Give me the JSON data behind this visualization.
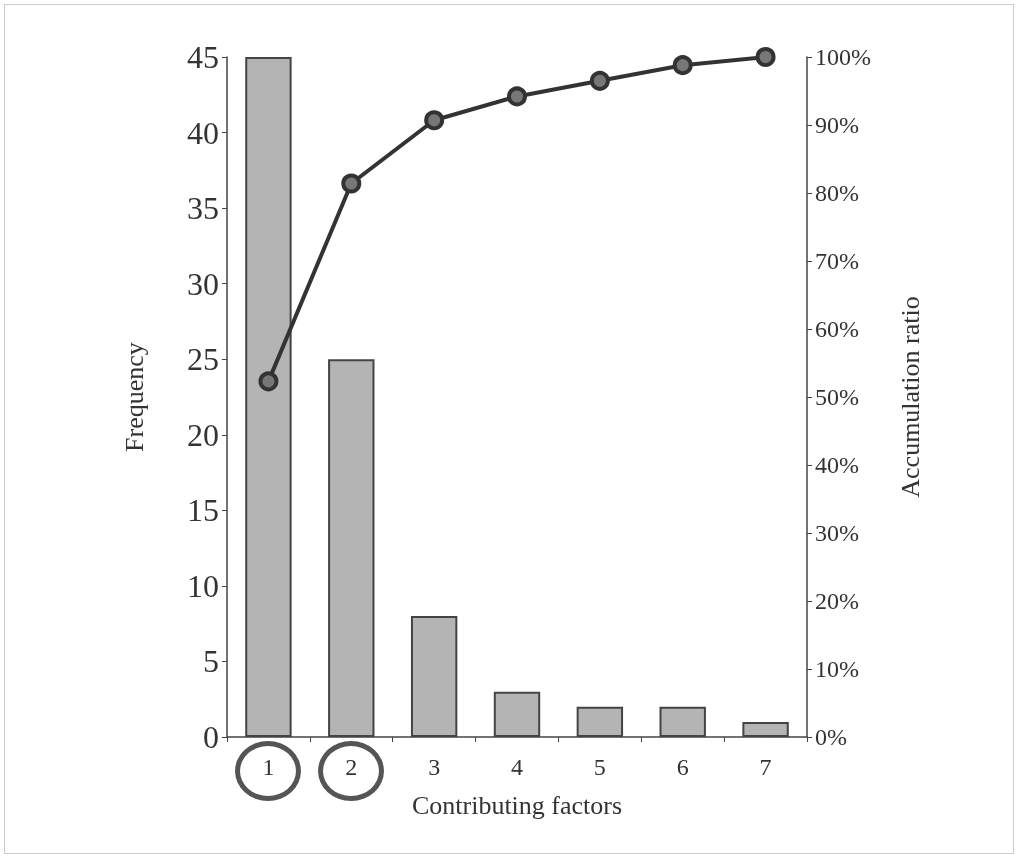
{
  "chart_data": {
    "type": "bar",
    "xlabel": "Contributing factors",
    "ylabel": "Frequency",
    "y2label": "Accumulation ratio",
    "categories": [
      "1",
      "2",
      "3",
      "4",
      "5",
      "6",
      "7"
    ],
    "series": [
      {
        "color": "#b4b4b4",
        "values": [
          45,
          25,
          8,
          3,
          2,
          2,
          1
        ]
      },
      {
        "type": "line",
        "axis": "y2",
        "color": "#333333",
        "values": [
          52.3,
          81.4,
          90.7,
          94.2,
          96.5,
          98.8,
          100
        ]
      }
    ],
    "ylim": [
      0,
      45
    ],
    "yticks": [
      0,
      5,
      10,
      15,
      20,
      25,
      30,
      35,
      40,
      45
    ],
    "y2lim": [
      0,
      100
    ],
    "y2ticks": [
      {
        "value": 0,
        "label": "0%"
      },
      {
        "value": 10,
        "label": "10%"
      },
      {
        "value": 20,
        "label": "20%"
      },
      {
        "value": 30,
        "label": "30%"
      },
      {
        "value": 40,
        "label": "40%"
      },
      {
        "value": 50,
        "label": "50%"
      },
      {
        "value": 60,
        "label": "60%"
      },
      {
        "value": 70,
        "label": "70%"
      },
      {
        "value": 80,
        "label": "80%"
      },
      {
        "value": 90,
        "label": "90%"
      },
      {
        "value": 100,
        "label": "100%"
      }
    ],
    "grid": false,
    "marker": "circle",
    "line_style": "solid"
  }
}
